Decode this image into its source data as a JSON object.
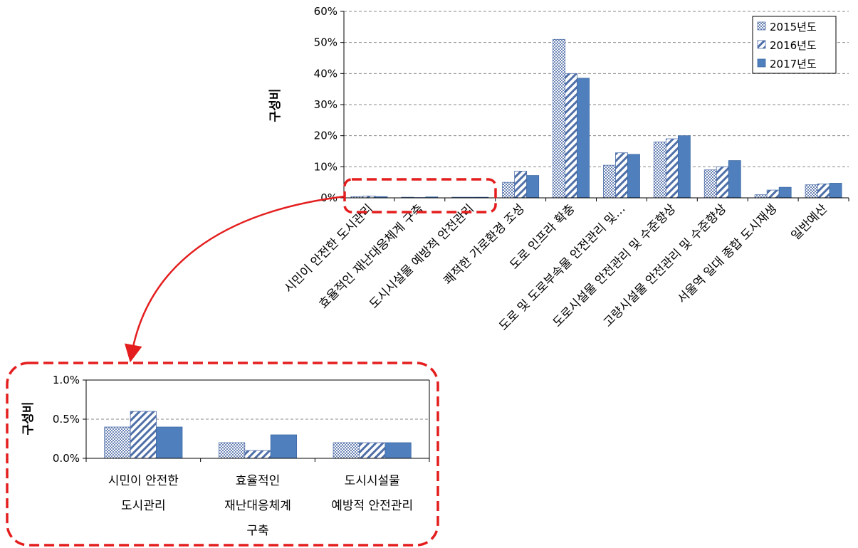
{
  "chart_data": [
    {
      "type": "bar",
      "ylabel": "구성비",
      "ylim": [
        0,
        60
      ],
      "yticks": [
        "0%",
        "10%",
        "20%",
        "30%",
        "40%",
        "50%",
        "60%"
      ],
      "grid": true,
      "legend_position": "top-right",
      "categories": [
        "시민이 안전한 도시관리",
        "효율적인 재난대응체계 구축",
        "도시시설물 예방적 안전관리",
        "쾌적한 가로환경 조성",
        "도로 인프라 확충",
        "도로 및 도로부속물 안전관리 및…",
        "도로시설물 안전관리 및 수준향상",
        "고량시설물 안전관리 및 수준향상",
        "서울역 일대 종합 도시재생",
        "일반예산"
      ],
      "series": [
        {
          "name": "2015년도",
          "pattern": "dots",
          "values": [
            0.4,
            0.2,
            0.2,
            5.0,
            51.0,
            10.5,
            18.0,
            9.0,
            1.0,
            4.2
          ]
        },
        {
          "name": "2016년도",
          "pattern": "hatch",
          "values": [
            0.6,
            0.1,
            0.2,
            8.6,
            40.0,
            14.5,
            19.0,
            10.0,
            2.5,
            4.5
          ]
        },
        {
          "name": "2017년도",
          "pattern": "solid",
          "values": [
            0.4,
            0.3,
            0.2,
            7.2,
            38.5,
            14.0,
            20.0,
            12.0,
            3.4,
            4.7
          ]
        }
      ]
    },
    {
      "type": "bar",
      "ylabel": "구성비",
      "ylim": [
        0,
        1.0
      ],
      "yticks": [
        "0.0%",
        "0.5%",
        "1.0%"
      ],
      "grid": true,
      "category_lines": [
        [
          "시민이 안전한",
          "도시관리"
        ],
        [
          "효율적인",
          "재난대응체계",
          "구축"
        ],
        [
          "도시시설물",
          "예방적 안전관리"
        ]
      ],
      "series": [
        {
          "name": "2015년도",
          "pattern": "dots",
          "values": [
            0.4,
            0.2,
            0.2
          ]
        },
        {
          "name": "2016년도",
          "pattern": "hatch",
          "values": [
            0.6,
            0.1,
            0.2
          ]
        },
        {
          "name": "2017년도",
          "pattern": "solid",
          "values": [
            0.4,
            0.3,
            0.2
          ]
        }
      ]
    }
  ],
  "colors": {
    "bar_solid": "#4f7fbd",
    "bar_pattern": "#4f6fa8",
    "annotation": "#e41e1e",
    "grid": "#8a8a8a"
  }
}
